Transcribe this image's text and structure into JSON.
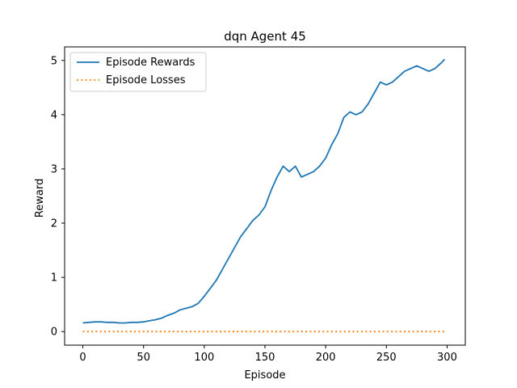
{
  "chart_data": {
    "type": "line",
    "title": "dqn Agent 45",
    "xlabel": "Episode",
    "ylabel": "Reward",
    "xlim": [
      -15,
      315
    ],
    "ylim": [
      -0.25,
      5.25
    ],
    "xticks": [
      0,
      50,
      100,
      150,
      200,
      250,
      300
    ],
    "yticks": [
      0,
      1,
      2,
      3,
      4,
      5
    ],
    "grid": false,
    "legend_position": "top-left",
    "series": [
      {
        "name": "Episode Rewards",
        "style": "solid",
        "color": "#1f77b4",
        "points": [
          [
            0,
            0.16
          ],
          [
            5,
            0.17
          ],
          [
            10,
            0.18
          ],
          [
            15,
            0.18
          ],
          [
            20,
            0.17
          ],
          [
            25,
            0.17
          ],
          [
            30,
            0.16
          ],
          [
            35,
            0.16
          ],
          [
            40,
            0.17
          ],
          [
            45,
            0.17
          ],
          [
            50,
            0.18
          ],
          [
            55,
            0.2
          ],
          [
            60,
            0.22
          ],
          [
            65,
            0.25
          ],
          [
            70,
            0.3
          ],
          [
            75,
            0.34
          ],
          [
            80,
            0.4
          ],
          [
            85,
            0.43
          ],
          [
            90,
            0.46
          ],
          [
            95,
            0.52
          ],
          [
            100,
            0.65
          ],
          [
            105,
            0.8
          ],
          [
            110,
            0.95
          ],
          [
            115,
            1.15
          ],
          [
            120,
            1.35
          ],
          [
            125,
            1.55
          ],
          [
            130,
            1.75
          ],
          [
            135,
            1.9
          ],
          [
            140,
            2.05
          ],
          [
            145,
            2.15
          ],
          [
            150,
            2.3
          ],
          [
            155,
            2.6
          ],
          [
            160,
            2.85
          ],
          [
            165,
            3.05
          ],
          [
            170,
            2.95
          ],
          [
            175,
            3.05
          ],
          [
            180,
            2.85
          ],
          [
            185,
            2.9
          ],
          [
            190,
            2.95
          ],
          [
            195,
            3.05
          ],
          [
            200,
            3.2
          ],
          [
            205,
            3.45
          ],
          [
            210,
            3.65
          ],
          [
            215,
            3.95
          ],
          [
            220,
            4.05
          ],
          [
            225,
            4.0
          ],
          [
            230,
            4.05
          ],
          [
            235,
            4.2
          ],
          [
            240,
            4.4
          ],
          [
            245,
            4.6
          ],
          [
            250,
            4.55
          ],
          [
            255,
            4.6
          ],
          [
            260,
            4.7
          ],
          [
            265,
            4.8
          ],
          [
            270,
            4.85
          ],
          [
            275,
            4.9
          ],
          [
            280,
            4.85
          ],
          [
            285,
            4.8
          ],
          [
            290,
            4.85
          ],
          [
            295,
            4.95
          ],
          [
            298,
            5.02
          ]
        ]
      },
      {
        "name": "Episode Losses",
        "style": "dotted",
        "color": "#ff7f0e",
        "points": [
          [
            0,
            0
          ],
          [
            298,
            0
          ]
        ]
      }
    ]
  }
}
